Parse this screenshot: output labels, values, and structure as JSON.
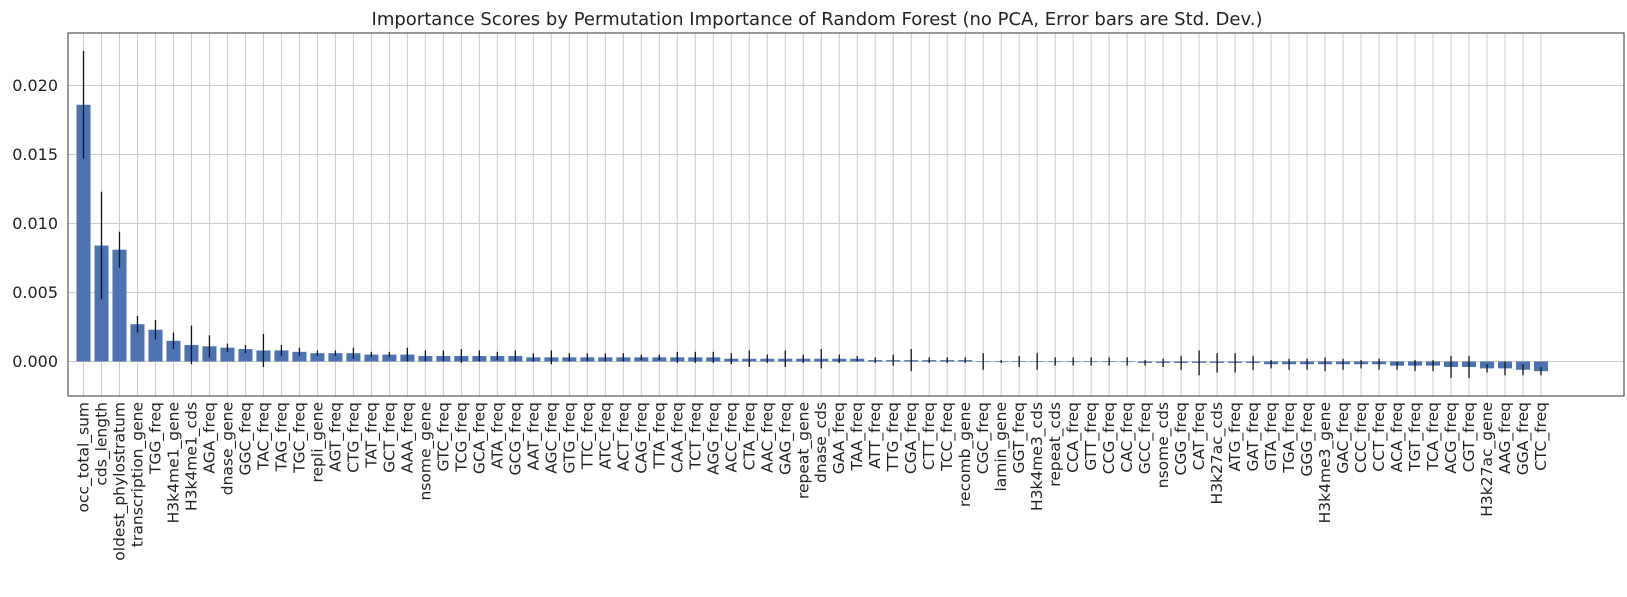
{
  "chart_data": {
    "type": "bar",
    "title": "Importance Scores by Permutation Importance of Random Forest (no PCA, Error bars are Std. Dev.)",
    "xlabel": "",
    "ylabel": "",
    "ylim": [
      -0.0025,
      0.0238
    ],
    "yticks": [
      0.0,
      0.005,
      0.01,
      0.015,
      0.02
    ],
    "ytick_labels": [
      "0.000",
      "0.005",
      "0.010",
      "0.015",
      "0.020"
    ],
    "grid": true,
    "bar_color": "#4c72b0",
    "error_color": "#111111",
    "categories": [
      "occ_total_sum",
      "cds_length",
      "oldest_phylostratum",
      "transcription_gene",
      "TGG_freq",
      "H3k4me1_gene",
      "H3k4me1_cds",
      "AGA_freq",
      "dnase_gene",
      "GGC_freq",
      "TAC_freq",
      "TAG_freq",
      "TGC_freq",
      "repli_gene",
      "AGT_freq",
      "CTG_freq",
      "TAT_freq",
      "GCT_freq",
      "AAA_freq",
      "nsome_gene",
      "GTC_freq",
      "TCG_freq",
      "GCA_freq",
      "ATA_freq",
      "GCG_freq",
      "AAT_freq",
      "AGC_freq",
      "GTG_freq",
      "TTC_freq",
      "ATC_freq",
      "ACT_freq",
      "CAG_freq",
      "TTA_freq",
      "CAA_freq",
      "TCT_freq",
      "AGG_freq",
      "ACC_freq",
      "CTA_freq",
      "AAC_freq",
      "GAG_freq",
      "repeat_gene",
      "dnase_cds",
      "GAA_freq",
      "TAA_freq",
      "ATT_freq",
      "TTG_freq",
      "CGA_freq",
      "CTT_freq",
      "TCC_freq",
      "recomb_gene",
      "CGC_freq",
      "lamin_gene",
      "GGT_freq",
      "H3k4me3_cds",
      "repeat_cds",
      "CCA_freq",
      "GTT_freq",
      "CCG_freq",
      "CAC_freq",
      "GCC_freq",
      "nsome_cds",
      "CGG_freq",
      "CAT_freq",
      "H3k27ac_cds",
      "ATG_freq",
      "GAT_freq",
      "GTA_freq",
      "TGA_freq",
      "GGG_freq",
      "H3k4me3_gene",
      "GAC_freq",
      "CCC_freq",
      "CCT_freq",
      "ACA_freq",
      "TGT_freq",
      "TCA_freq",
      "ACG_freq",
      "CGT_freq",
      "H3k27ac_gene",
      "AAG_freq",
      "GGA_freq",
      "CTC_freq"
    ],
    "values": [
      0.0186,
      0.0084,
      0.0081,
      0.0027,
      0.0023,
      0.0015,
      0.0012,
      0.0011,
      0.001,
      0.0009,
      0.0008,
      0.0008,
      0.0007,
      0.0006,
      0.0006,
      0.0006,
      0.0005,
      0.0005,
      0.0005,
      0.0004,
      0.0004,
      0.0004,
      0.0004,
      0.0004,
      0.0004,
      0.0003,
      0.0003,
      0.0003,
      0.0003,
      0.0003,
      0.0003,
      0.0003,
      0.0003,
      0.0003,
      0.0003,
      0.0003,
      0.0002,
      0.0002,
      0.0002,
      0.0002,
      0.0002,
      0.0002,
      0.0002,
      0.0002,
      0.0001,
      0.0001,
      0.0001,
      0.0001,
      0.0001,
      0.0001,
      0.0,
      0.0,
      0.0,
      0.0,
      0.0,
      0.0,
      0.0,
      0.0,
      0.0,
      -0.0001,
      -0.0001,
      -0.0001,
      -0.0001,
      -0.0001,
      -0.0001,
      -0.0001,
      -0.0002,
      -0.0002,
      -0.0002,
      -0.0002,
      -0.0002,
      -0.0002,
      -0.0002,
      -0.0003,
      -0.0003,
      -0.0003,
      -0.0004,
      -0.0004,
      -0.0005,
      -0.0005,
      -0.0006,
      -0.0007
    ],
    "errors": [
      0.0039,
      0.0039,
      0.0013,
      0.0006,
      0.0007,
      0.0006,
      0.0014,
      0.0008,
      0.0003,
      0.0003,
      0.0012,
      0.0004,
      0.0003,
      0.0002,
      0.0002,
      0.0004,
      0.0002,
      0.0002,
      0.0005,
      0.0004,
      0.0004,
      0.0005,
      0.0004,
      0.0003,
      0.0004,
      0.0003,
      0.0005,
      0.0003,
      0.0003,
      0.0003,
      0.0003,
      0.0002,
      0.0002,
      0.0004,
      0.0004,
      0.0004,
      0.0004,
      0.0006,
      0.0003,
      0.0006,
      0.0003,
      0.0007,
      0.0003,
      0.0002,
      0.0002,
      0.0004,
      0.0008,
      0.0002,
      0.0002,
      0.0002,
      0.0006,
      0.0001,
      0.0004,
      0.0006,
      0.0003,
      0.0003,
      0.0003,
      0.0003,
      0.0003,
      0.0002,
      0.0003,
      0.0005,
      0.0009,
      0.0007,
      0.0007,
      0.0005,
      0.0003,
      0.0004,
      0.0004,
      0.0005,
      0.0004,
      0.0003,
      0.0004,
      0.0003,
      0.0004,
      0.0004,
      0.0008,
      0.0008,
      0.0003,
      0.0005,
      0.0004,
      0.0003
    ]
  }
}
